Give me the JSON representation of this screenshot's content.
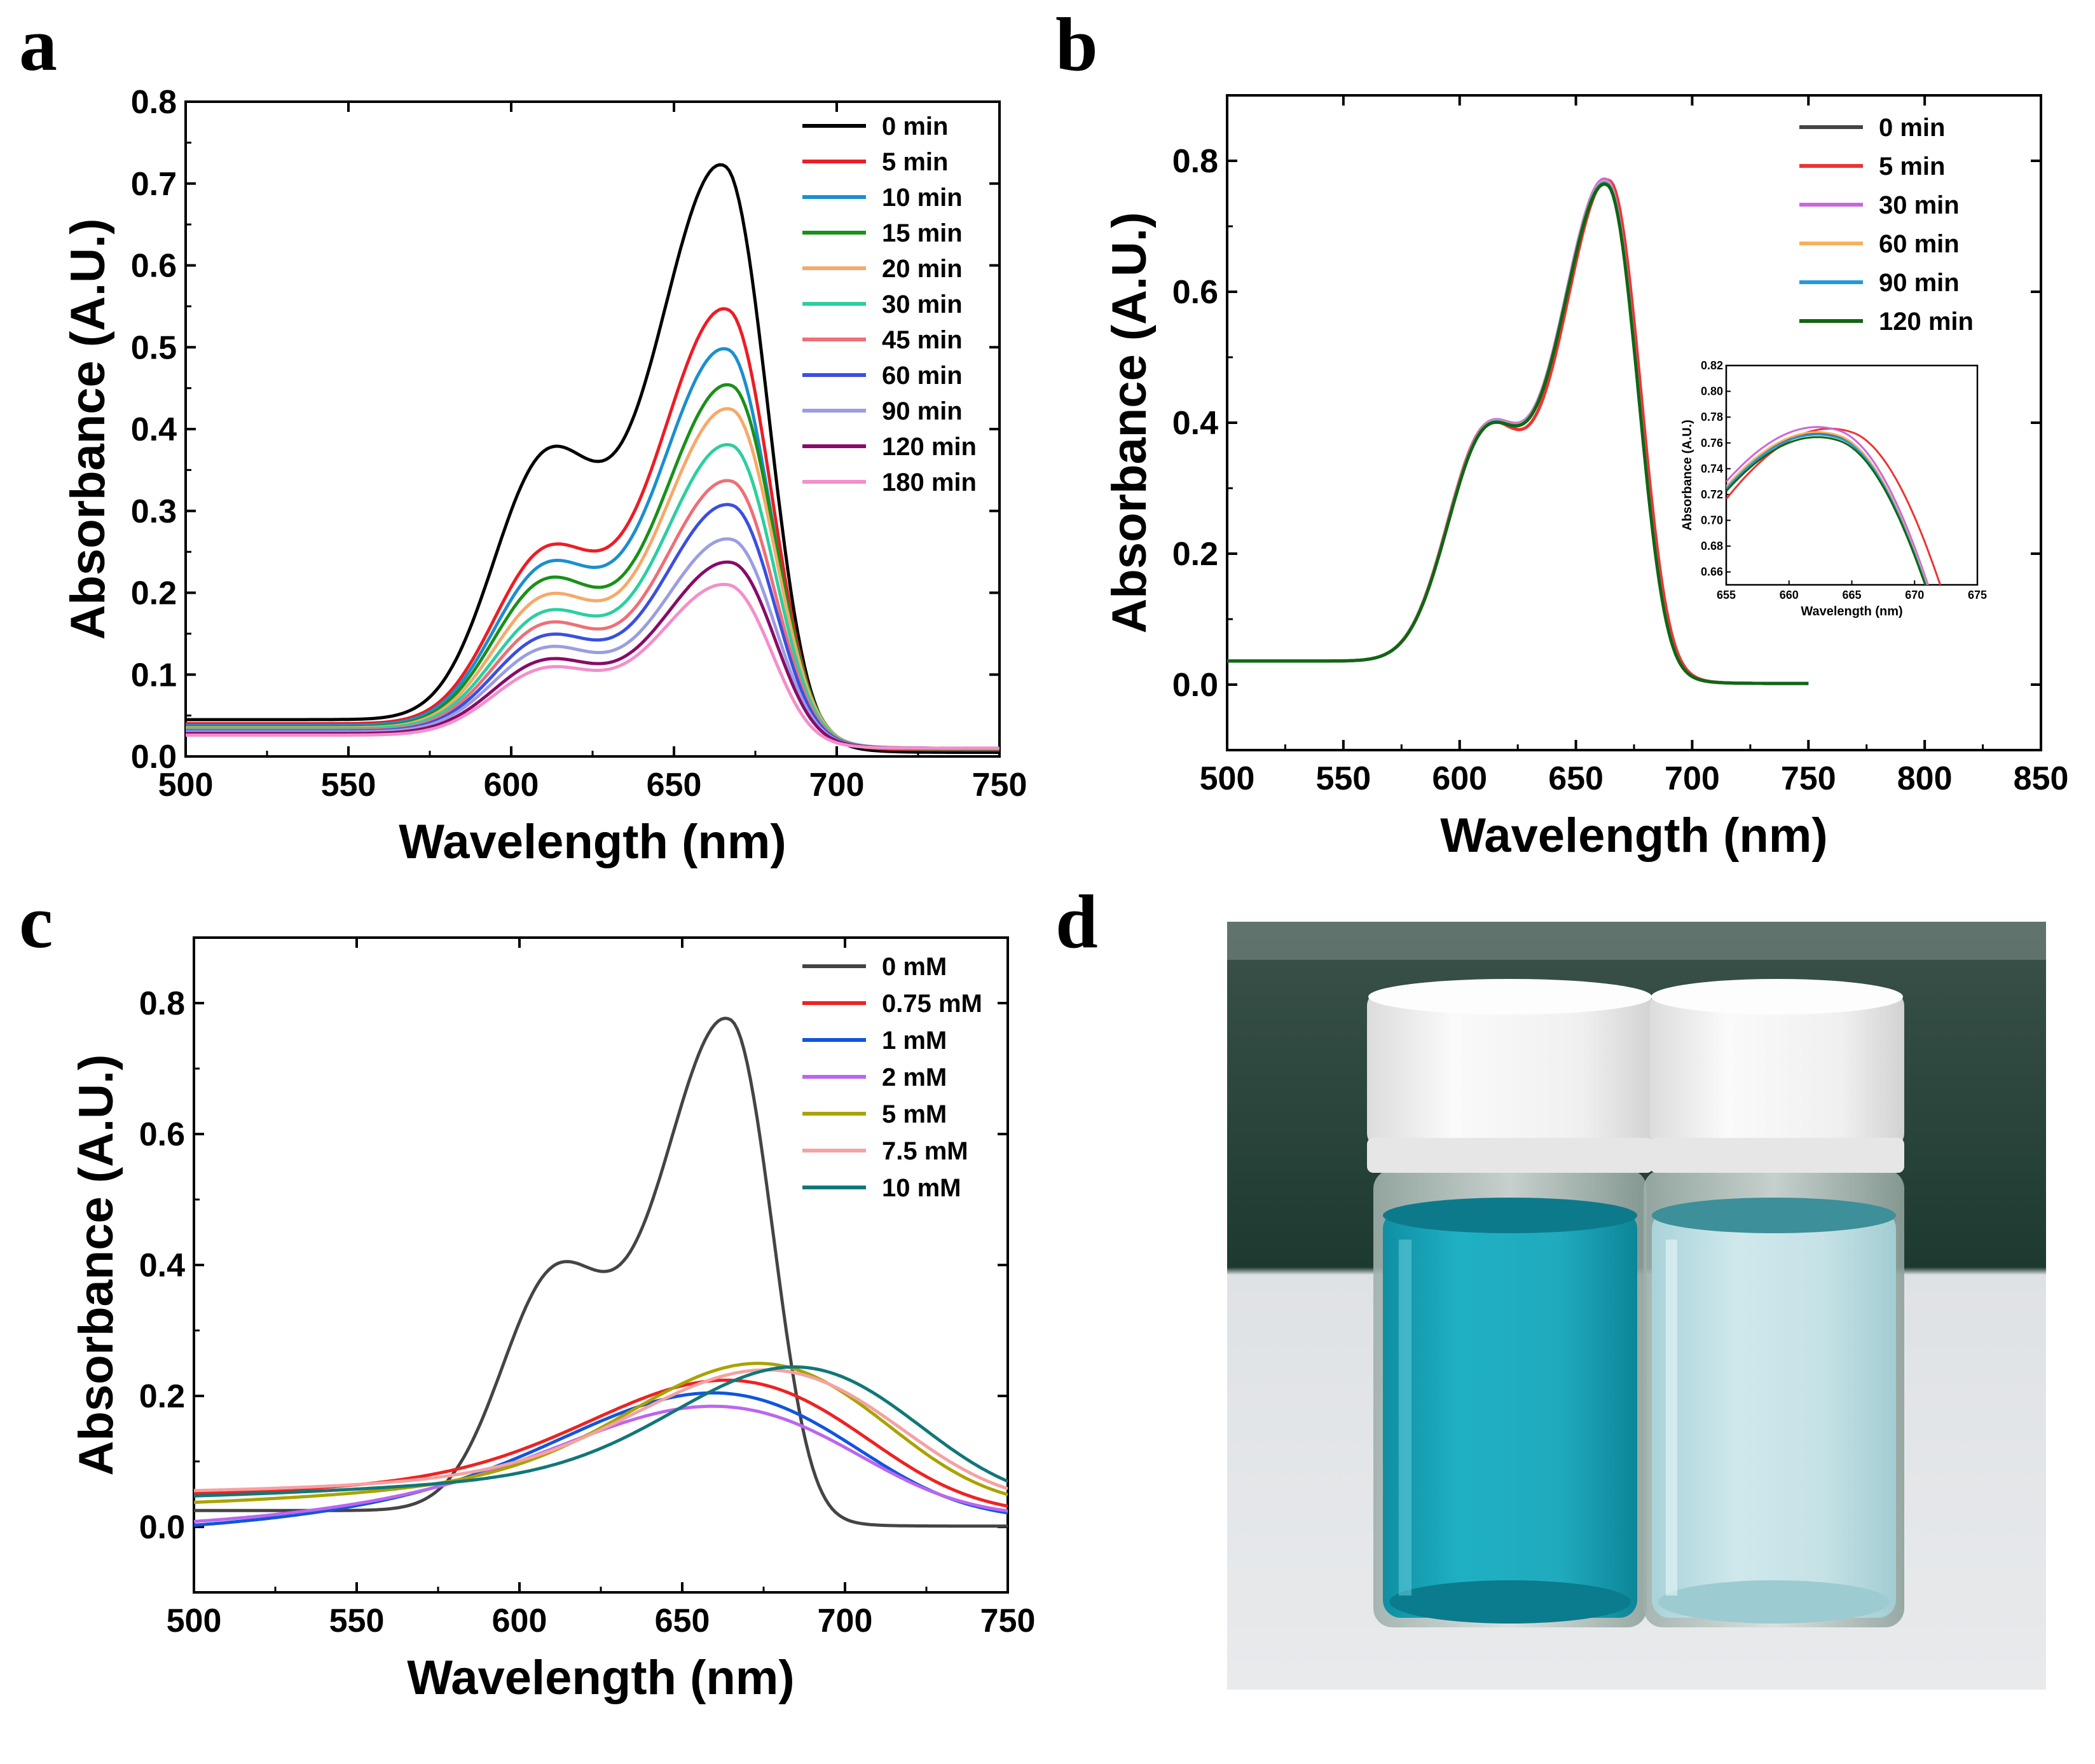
{
  "panels": {
    "a": {
      "letter": "a"
    },
    "b": {
      "letter": "b"
    },
    "c": {
      "letter": "c"
    },
    "d": {
      "letter": "d"
    }
  },
  "chart_data": [
    {
      "id": "a",
      "type": "line",
      "xlabel": "Wavelength (nm)",
      "ylabel": "Absorbance (A.U.)",
      "xlim": [
        500,
        750
      ],
      "ylim": [
        0.0,
        0.8
      ],
      "xticks": [
        500,
        550,
        600,
        650,
        700,
        750
      ],
      "xtick_labels": [
        "500",
        "550",
        "600",
        "650",
        "700",
        "750"
      ],
      "yticks": [
        0.0,
        0.1,
        0.2,
        0.3,
        0.4,
        0.5,
        0.6,
        0.7,
        0.8
      ],
      "ytick_labels": [
        "0.0",
        "0.1",
        "0.2",
        "0.3",
        "0.4",
        "0.5",
        "0.6",
        "0.7",
        "0.8"
      ],
      "legend_position": "top-right",
      "series": [
        {
          "name": "0 min",
          "color": "#000000",
          "baseline": 0.045,
          "peak": 0.74,
          "shoulder": 0.38,
          "center": 666,
          "tail": 0.005
        },
        {
          "name": "5 min",
          "color": "#ee1c24",
          "baseline": 0.04,
          "peak": 0.56,
          "shoulder": 0.26,
          "center": 667,
          "tail": 0.008
        },
        {
          "name": "10 min",
          "color": "#1a8fcf",
          "baseline": 0.038,
          "peak": 0.51,
          "shoulder": 0.24,
          "center": 667,
          "tail": 0.009
        },
        {
          "name": "15 min",
          "color": "#199019",
          "baseline": 0.036,
          "peak": 0.465,
          "shoulder": 0.22,
          "center": 668,
          "tail": 0.009
        },
        {
          "name": "20 min",
          "color": "#f6a96a",
          "baseline": 0.035,
          "peak": 0.435,
          "shoulder": 0.2,
          "center": 668,
          "tail": 0.01
        },
        {
          "name": "30 min",
          "color": "#2ccf9f",
          "baseline": 0.034,
          "peak": 0.39,
          "shoulder": 0.18,
          "center": 668,
          "tail": 0.01
        },
        {
          "name": "45 min",
          "color": "#ee6f77",
          "baseline": 0.032,
          "peak": 0.345,
          "shoulder": 0.165,
          "center": 668,
          "tail": 0.01
        },
        {
          "name": "60 min",
          "color": "#3a4fe0",
          "baseline": 0.031,
          "peak": 0.315,
          "shoulder": 0.15,
          "center": 668,
          "tail": 0.01
        },
        {
          "name": "90 min",
          "color": "#9a9ee0",
          "baseline": 0.03,
          "peak": 0.272,
          "shoulder": 0.135,
          "center": 668,
          "tail": 0.01
        },
        {
          "name": "120 min",
          "color": "#8a0a6a",
          "baseline": 0.028,
          "peak": 0.243,
          "shoulder": 0.12,
          "center": 668,
          "tail": 0.01
        },
        {
          "name": "180 min",
          "color": "#f38fcb",
          "baseline": 0.026,
          "peak": 0.215,
          "shoulder": 0.11,
          "center": 667,
          "tail": 0.01
        }
      ]
    },
    {
      "id": "b",
      "type": "line",
      "xlabel": "Wavelength (nm)",
      "ylabel": "Absorbance (A.U.)",
      "xlim": [
        500,
        850
      ],
      "ylim": [
        -0.1,
        0.9
      ],
      "xticks": [
        500,
        550,
        600,
        650,
        700,
        750,
        800,
        850
      ],
      "xtick_labels": [
        "500",
        "550",
        "600",
        "650",
        "700",
        "750",
        "800",
        "850"
      ],
      "yticks": [
        0.0,
        0.2,
        0.4,
        0.6,
        0.8
      ],
      "ytick_labels": [
        "0.0",
        "0.2",
        "0.4",
        "0.6",
        "0.8"
      ],
      "data_x_range": [
        500,
        750
      ],
      "legend_position": "top-right",
      "series": [
        {
          "name": "0 min",
          "color": "#444444",
          "baseline": 0.036,
          "peak": 0.785,
          "center": 664
        },
        {
          "name": "5 min",
          "color": "#ee3333",
          "baseline": 0.036,
          "peak": 0.789,
          "center": 665
        },
        {
          "name": "30 min",
          "color": "#cc66dd",
          "baseline": 0.036,
          "peak": 0.79,
          "center": 664
        },
        {
          "name": "60 min",
          "color": "#f5b060",
          "baseline": 0.036,
          "peak": 0.786,
          "center": 664
        },
        {
          "name": "90 min",
          "color": "#2299dd",
          "baseline": 0.036,
          "peak": 0.784,
          "center": 664
        },
        {
          "name": "120 min",
          "color": "#116611",
          "baseline": 0.036,
          "peak": 0.782,
          "center": 664
        }
      ],
      "inset": {
        "xlabel": "Wavelength (nm)",
        "ylabel": "Absorbance (A.U.)",
        "xlim": [
          655,
          675
        ],
        "ylim": [
          0.65,
          0.82
        ],
        "xticks": [
          655,
          660,
          665,
          670,
          675
        ],
        "xtick_labels": [
          "655",
          "660",
          "665",
          "670",
          "675"
        ],
        "yticks": [
          0.66,
          0.68,
          0.7,
          0.72,
          0.74,
          0.76,
          0.78,
          0.8,
          0.82
        ],
        "ytick_labels": [
          "0.66",
          "0.68",
          "0.70",
          "0.72",
          "0.74",
          "0.76",
          "0.78",
          "0.80",
          "0.82"
        ]
      }
    },
    {
      "id": "c",
      "type": "line",
      "xlabel": "Wavelength (nm)",
      "ylabel": "Absorbance (A.U.)",
      "xlim": [
        500,
        750
      ],
      "ylim": [
        -0.1,
        0.9
      ],
      "xticks": [
        500,
        550,
        600,
        650,
        700,
        750
      ],
      "xtick_labels": [
        "500",
        "550",
        "600",
        "650",
        "700",
        "750"
      ],
      "yticks": [
        0.0,
        0.2,
        0.4,
        0.6,
        0.8
      ],
      "ytick_labels": [
        "0.0",
        "0.2",
        "0.4",
        "0.6",
        "0.8"
      ],
      "legend_position": "top-right",
      "series": [
        {
          "name": "0 mM",
          "color": "#444444",
          "kind": "mb",
          "baseline": 0.025,
          "peak": 0.795,
          "center": 665
        },
        {
          "name": "0.75 mM",
          "color": "#ee2222",
          "kind": "broad",
          "start": 0.045,
          "peak": 0.235,
          "center": 668,
          "width": 70,
          "end": 0.015
        },
        {
          "name": "1 mM",
          "color": "#1155dd",
          "kind": "broad",
          "start": -0.015,
          "peak": 0.22,
          "center": 663,
          "width": 72,
          "end": 0.008
        },
        {
          "name": "2 mM",
          "color": "#bb66ee",
          "kind": "broad",
          "start": -0.008,
          "peak": 0.198,
          "center": 663,
          "width": 72,
          "end": 0.012
        },
        {
          "name": "5 mM",
          "color": "#a9a300",
          "kind": "broad",
          "start": 0.028,
          "peak": 0.262,
          "center": 677,
          "width": 65,
          "end": 0.025
        },
        {
          "name": "7.5 mM",
          "color": "#f4a2a2",
          "kind": "broad",
          "start": 0.05,
          "peak": 0.25,
          "center": 680,
          "width": 68,
          "end": 0.03
        },
        {
          "name": "10 mM",
          "color": "#117777",
          "kind": "broad",
          "start": 0.04,
          "peak": 0.255,
          "center": 688,
          "width": 62,
          "end": 0.03
        }
      ]
    }
  ],
  "photo": {
    "description_colors": {
      "left_solution": "#1aa7bd",
      "right_solution": "#bfe1e6",
      "caps": "#f4f4f4",
      "background_top": "#1d3a30",
      "table": "#e4e6e9"
    }
  }
}
